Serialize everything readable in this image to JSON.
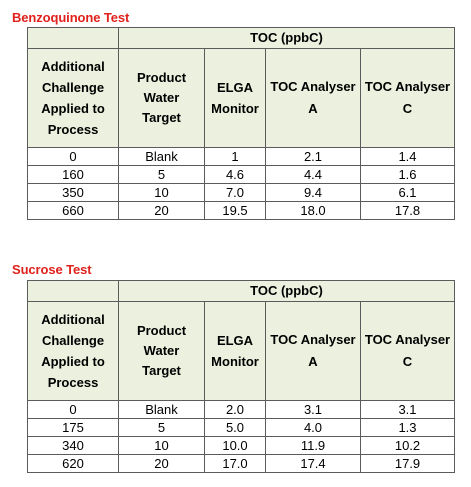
{
  "sections": [
    {
      "title": "Benzoquinone Test",
      "group_header": "TOC (ppbC)",
      "columns": [
        [
          "Additional",
          "Challenge",
          "Applied to",
          "Process"
        ],
        [
          "Product",
          "Water",
          "Target"
        ],
        [
          "ELGA",
          "Monitor"
        ],
        [
          "TOC Analyser",
          "A"
        ],
        [
          "TOC Analyser",
          "C"
        ]
      ],
      "rows": [
        [
          "0",
          "Blank",
          "1",
          "2.1",
          "1.4"
        ],
        [
          "160",
          "5",
          "4.6",
          "4.4",
          "1.6"
        ],
        [
          "350",
          "10",
          "7.0",
          "9.4",
          "6.1"
        ],
        [
          "660",
          "20",
          "19.5",
          "18.0",
          "17.8"
        ]
      ]
    },
    {
      "title": "Sucrose Test",
      "group_header": "TOC (ppbC)",
      "columns": [
        [
          "Additional",
          "Challenge",
          "Applied to",
          "Process"
        ],
        [
          "Product",
          "Water",
          "Target"
        ],
        [
          "ELGA",
          "Monitor"
        ],
        [
          "TOC Analyser",
          "A"
        ],
        [
          "TOC Analyser",
          "C"
        ]
      ],
      "rows": [
        [
          "0",
          "Blank",
          "2.0",
          "3.1",
          "3.1"
        ],
        [
          "175",
          "5",
          "5.0",
          "4.0",
          "1.3"
        ],
        [
          "340",
          "10",
          "10.0",
          "11.9",
          "10.2"
        ],
        [
          "620",
          "20",
          "17.0",
          "17.4",
          "17.9"
        ]
      ]
    }
  ],
  "colors": {
    "title": "#e0211c",
    "header_fill": "#ebf1de",
    "border": "#5b5b5b"
  }
}
